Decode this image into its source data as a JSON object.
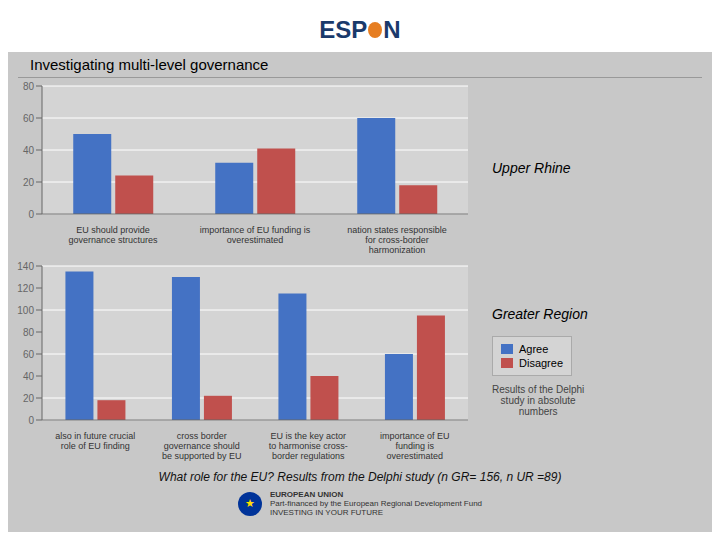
{
  "chart_data": [
    {
      "type": "bar",
      "title": "Upper Rhine",
      "categories": [
        "EU should provide\ngovernance structures",
        "importance of EU funding is\noverestimated",
        "nation states responsible\nfor cross-border\nharmonization"
      ],
      "series": [
        {
          "name": "Agree",
          "color": "#4472C4",
          "values": [
            50,
            32,
            60
          ]
        },
        {
          "name": "Disagree",
          "color": "#C0504D",
          "values": [
            24,
            41,
            18
          ]
        }
      ],
      "ylim": [
        0,
        80
      ],
      "yticks": [
        0,
        20,
        40,
        60,
        80
      ],
      "grid": true,
      "annotations": [
        "ESP",
        "N",
        "Investigating multi-level governance"
      ]
    },
    {
      "type": "bar",
      "title": "Greater Region",
      "categories": [
        "also in future crucial\nrole of EU finding",
        "cross border\ngovernance should\nbe supported by EU",
        "EU is the key actor\nto harmonise cross-\nborder regulations",
        "importance of EU\nfunding is\noverestimated"
      ],
      "series": [
        {
          "name": "Agree",
          "color": "#4472C4",
          "values": [
            135,
            130,
            115,
            60
          ]
        },
        {
          "name": "Disagree",
          "color": "#C0504D",
          "values": [
            18,
            22,
            40,
            95
          ]
        }
      ],
      "ylim": [
        0,
        140
      ],
      "yticks": [
        0,
        20,
        40,
        60,
        80,
        100,
        120,
        140
      ],
      "grid": true,
      "legend": "upper left",
      "annotations": [
        "Results of the Delphi\nstudy in absolute\nnumbers",
        "What role for the EU? Results from the Delphi study (n GR= 156, n UR =89)",
        "★",
        "EUROPEAN UNION",
        "Part-financed by the European Regional Development Fund",
        "INVESTING IN YOUR FUTURE"
      ]
    }
  ]
}
